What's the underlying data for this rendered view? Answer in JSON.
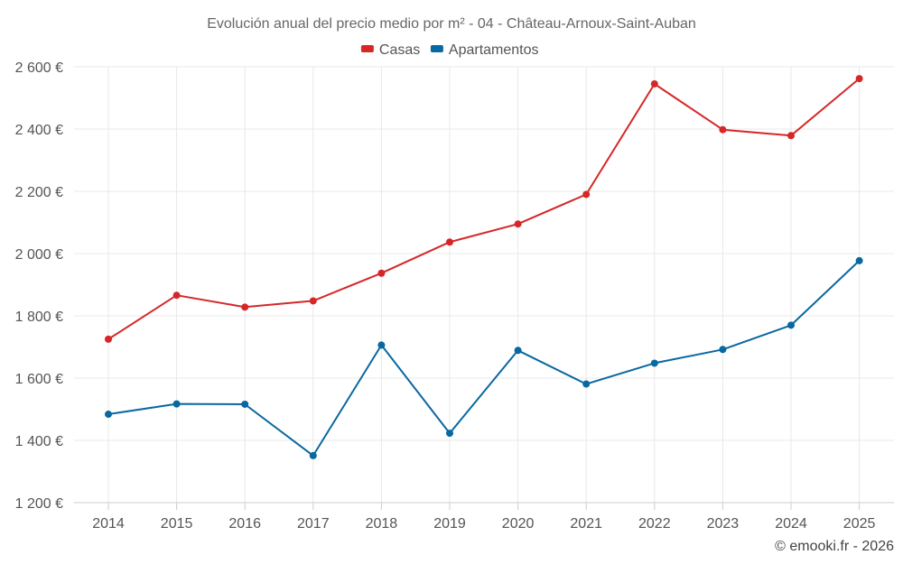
{
  "chart_data": {
    "type": "line",
    "title": "Evolución anual del precio medio por m² - 04 - Château-Arnoux-Saint-Auban",
    "categories": [
      "2014",
      "2015",
      "2016",
      "2017",
      "2018",
      "2019",
      "2020",
      "2021",
      "2022",
      "2023",
      "2024",
      "2025"
    ],
    "ylim": [
      1200,
      2600
    ],
    "yticks": [
      1200,
      1400,
      1600,
      1800,
      2000,
      2200,
      2400,
      2600
    ],
    "ytick_labels": [
      "1 200 €",
      "1 400 €",
      "1 600 €",
      "1 800 €",
      "2 000 €",
      "2 200 €",
      "2 400 €",
      "2 600 €"
    ],
    "legend_position": "top-center",
    "grid": true,
    "series": [
      {
        "name": "Casas",
        "color": "#d62728",
        "values": [
          1725,
          1866,
          1828,
          1848,
          1937,
          2037,
          2095,
          2190,
          2545,
          2398,
          2379,
          2562
        ]
      },
      {
        "name": "Apartamentos",
        "color": "#0868a0",
        "values": [
          1484,
          1517,
          1516,
          1351,
          1706,
          1423,
          1689,
          1581,
          1648,
          1692,
          1770,
          1977
        ]
      }
    ]
  },
  "credit": "© emooki.fr - 2026"
}
